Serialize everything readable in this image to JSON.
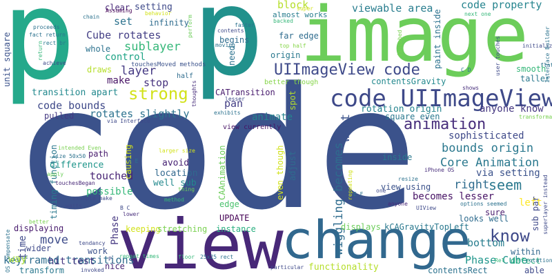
{
  "cloud": {
    "words": [
      {
        "text": "code",
        "color": "#3b528b"
      },
      {
        "text": "p",
        "color": "#25a98b"
      },
      {
        "text": "p",
        "color": "#21918c"
      },
      {
        "text": "image",
        "color": "#6ccd5a"
      },
      {
        "text": "view",
        "color": "#482878"
      },
      {
        "text": "change",
        "color": "#31688e"
      },
      {
        "text": "code UIImageView",
        "color": "#3e4989"
      },
      {
        "text": "UIImageView code",
        "color": "#3e4989"
      },
      {
        "text": "animation",
        "color": "#472d7b"
      },
      {
        "text": "strong",
        "color": "#d2e21b"
      },
      {
        "text": "know",
        "color": "#3e4989"
      },
      {
        "text": "seem",
        "color": "#2a788e"
      },
      {
        "text": "keyframed transitions",
        "color": "#2f6c8e"
      },
      {
        "text": "wiggling becomes",
        "color": "#2f6c8e"
      },
      {
        "text": "Core Animation",
        "color": "#2a788e"
      },
      {
        "text": "bounds origin",
        "color": "#2a788e"
      },
      {
        "text": "viewable area",
        "color": "#287d8e"
      },
      {
        "text": "code property",
        "color": "#25848e"
      },
      {
        "text": "sublayer",
        "color": "#35b779"
      },
      {
        "text": "layer",
        "color": "#443983"
      },
      {
        "text": "Cube rotates",
        "color": "#433e85"
      },
      {
        "text": "code bounds",
        "color": "#3e4989"
      },
      {
        "text": "rotates slightly",
        "color": "#2c728e"
      },
      {
        "text": "touched",
        "color": "#482475"
      },
      {
        "text": "move",
        "color": "#3e4c8a"
      },
      {
        "text": "right",
        "color": "#2f6c8e"
      },
      {
        "text": "pan",
        "color": "#433e85"
      },
      {
        "text": "want",
        "color": "#3b528b"
      },
      {
        "text": "set",
        "color": "#2c728e"
      },
      {
        "text": "stop",
        "color": "#46327e"
      },
      {
        "text": "block",
        "color": "#b5de2b"
      },
      {
        "text": "Phase Cube",
        "color": "#1f968b"
      },
      {
        "text": "bottom",
        "color": "#287d8e"
      },
      {
        "text": "way",
        "color": "#a5db36"
      },
      {
        "text": "hit test",
        "color": "#453781"
      },
      {
        "text": "make",
        "color": "#471365"
      },
      {
        "text": "animate",
        "color": "#25848e"
      },
      {
        "text": "sophisticated",
        "color": "#3e4989"
      },
      {
        "text": "control",
        "color": "#20a486"
      },
      {
        "text": "anyone know",
        "color": "#453781"
      },
      {
        "text": "via setting",
        "color": "#3b528b"
      },
      {
        "text": "becomes lesser",
        "color": "#471365"
      },
      {
        "text": "left",
        "color": "#fde725"
      },
      {
        "text": "difference",
        "color": "#1f958b"
      },
      {
        "text": "possible",
        "color": "#35b779"
      },
      {
        "text": "Phase",
        "color": "#453781"
      },
      {
        "text": "time",
        "color": "#3e4989"
      },
      {
        "text": "transition apart",
        "color": "#23898e"
      },
      {
        "text": "location",
        "color": "#31688e"
      },
      {
        "text": "well sub",
        "color": "#23898e"
      },
      {
        "text": "avoid",
        "color": "#482475"
      },
      {
        "text": "path",
        "color": "#481b6d"
      },
      {
        "text": "displaying",
        "color": "#481b6d"
      },
      {
        "text": "keeping",
        "color": "#d2e21b"
      },
      {
        "text": "stretching",
        "color": "#7ad151"
      },
      {
        "text": "instance",
        "color": "#29af7f"
      },
      {
        "text": "functionality",
        "color": "#b5de2b"
      },
      {
        "text": "displays",
        "color": "#6ccd5a"
      },
      {
        "text": "kCAGravityTopLeft",
        "color": "#2a788e"
      },
      {
        "text": "looks well",
        "color": "#2f6c8e"
      },
      {
        "text": "sure",
        "color": "#481b6d"
      },
      {
        "text": "within",
        "color": "#31688e"
      },
      {
        "text": "detect",
        "color": "#29af7f"
      },
      {
        "text": "able",
        "color": "#3e4989"
      },
      {
        "text": "contentsRect",
        "color": "#2c728e"
      },
      {
        "text": "pulled",
        "color": "#443983"
      },
      {
        "text": "draws",
        "color": "#b5de2b"
      },
      {
        "text": "whole",
        "color": "#2c728e"
      },
      {
        "text": "setting",
        "color": "#3e4989"
      },
      {
        "text": "infinity",
        "color": "#2f6c8e"
      },
      {
        "text": "clear",
        "color": "#482878"
      },
      {
        "text": "almost works",
        "color": "#287d8e"
      },
      {
        "text": "far edge",
        "color": "#2f6c8e"
      },
      {
        "text": "begins",
        "color": "#2f6c8e"
      },
      {
        "text": "origin",
        "color": "#2a788e"
      },
      {
        "text": "need",
        "color": "#2c728e"
      },
      {
        "text": "CATransition",
        "color": "#481b6d"
      },
      {
        "text": "spot",
        "color": "#b5de2b"
      },
      {
        "text": "rotation origin",
        "color": "#25848e"
      },
      {
        "text": "square even",
        "color": "#2a788e"
      },
      {
        "text": "contentsGravity",
        "color": "#23898e"
      },
      {
        "text": "smooth",
        "color": "#35b779"
      },
      {
        "text": "taller",
        "color": "#2a788e"
      },
      {
        "text": "inside",
        "color": "#2a788e"
      },
      {
        "text": "adjust",
        "color": "#2f6c8e"
      },
      {
        "text": "even though",
        "color": "#d2e21b"
      },
      {
        "text": "view using",
        "color": "#3b528b"
      },
      {
        "text": "CAAnimation",
        "color": "#6ccd5a"
      },
      {
        "text": "edge",
        "color": "#4ac16d"
      },
      {
        "text": "UPDATE",
        "color": "#440154"
      },
      {
        "text": "work",
        "color": "#3b528b"
      },
      {
        "text": "nice",
        "color": "#482475"
      },
      {
        "text": "transform",
        "color": "#2a788e"
      },
      {
        "text": "timing function",
        "color": "#2a788e"
      },
      {
        "text": "unit square",
        "color": "#3b528b"
      },
      {
        "text": "wider",
        "color": "#3e4989"
      },
      {
        "text": "causing",
        "color": "#d2e21b"
      },
      {
        "text": "paint inside",
        "color": "#2c728e"
      },
      {
        "text": "sub par",
        "color": "#3e4989"
      },
      {
        "text": "view currently",
        "color": "#471365"
      },
      {
        "text": "half",
        "color": "#2f6c8e"
      },
      {
        "text": "better though",
        "color": "#86d549"
      },
      {
        "text": "touchesMoved methods",
        "color": "#3b528b"
      },
      {
        "text": "Assuming",
        "color": "#440154"
      },
      {
        "text": "behavior",
        "color": "#d2e21b"
      },
      {
        "text": "chain",
        "color": "#2c728e"
      },
      {
        "text": "perform",
        "color": "#6ccd5a"
      },
      {
        "text": "proceeds",
        "color": "#2c728e"
      },
      {
        "text": "fact return",
        "color": "#2c728e"
      },
      {
        "text": "rect br",
        "color": "#2a788e"
      },
      {
        "text": "return",
        "color": "#35b779"
      },
      {
        "text": "achieve",
        "color": "#3e4989"
      },
      {
        "text": "contents",
        "color": "#3e4989"
      },
      {
        "text": "faster",
        "color": "#2c728e"
      },
      {
        "text": "backed",
        "color": "#35b779"
      },
      {
        "text": "top half",
        "color": "#86d549"
      },
      {
        "text": "super",
        "color": "#d2e21b"
      },
      {
        "text": "finished",
        "color": "#7ad151"
      },
      {
        "text": "next one",
        "color": "#35b779"
      },
      {
        "text": "user touches",
        "color": "#3e4989"
      },
      {
        "text": "initialized",
        "color": "#3e4989"
      },
      {
        "text": "Interface Builder",
        "color": "#2c728e"
      },
      {
        "text": "flat",
        "color": "#2c728e"
      },
      {
        "text": "shows",
        "color": "#472d7b"
      },
      {
        "text": "thoughts",
        "color": "#472d7b"
      },
      {
        "text": "lesser",
        "color": "#3e4989"
      },
      {
        "text": "exhibits",
        "color": "#2c728e"
      },
      {
        "text": "via Interface",
        "color": "#3e4989"
      },
      {
        "text": "intended Even",
        "color": "#7ad151"
      },
      {
        "text": "size 50x50",
        "color": "#2c728e"
      },
      {
        "text": "apply",
        "color": "#6ccd5a"
      },
      {
        "text": "touchesBegan",
        "color": "#482878"
      },
      {
        "text": "waits",
        "color": "#3e4989"
      },
      {
        "text": "example make",
        "color": "#3e4989"
      },
      {
        "text": "tendancy",
        "color": "#3e4989"
      },
      {
        "text": "repeat times",
        "color": "#35b779"
      },
      {
        "text": "invoked",
        "color": "#3e4989"
      },
      {
        "text": "lower",
        "color": "#472d7b"
      },
      {
        "text": "floor",
        "color": "#35b779"
      },
      {
        "text": "25x25 rect",
        "color": "#2c728e"
      },
      {
        "text": "larger size",
        "color": "#d2e21b"
      },
      {
        "text": "thing",
        "color": "#6ccd5a"
      },
      {
        "text": "method",
        "color": "#35b779"
      },
      {
        "text": "resize",
        "color": "#2c728e"
      },
      {
        "text": "iPhone OS",
        "color": "#472d7b"
      },
      {
        "text": "one",
        "color": "#3e4989"
      },
      {
        "text": "anyone",
        "color": "#482878"
      },
      {
        "text": "options seemed",
        "color": "#2c728e"
      },
      {
        "text": "Rel",
        "color": "#35b779"
      },
      {
        "text": "rotation",
        "color": "#2c728e"
      },
      {
        "text": "superlayer instead",
        "color": "#3e4989"
      },
      {
        "text": "particular",
        "color": "#3e4989"
      },
      {
        "text": "better",
        "color": "#7ad151"
      },
      {
        "text": "OS compensate",
        "color": "#2c728e"
      },
      {
        "text": "B C",
        "color": "#3e4989"
      },
      {
        "text": "C D",
        "color": "#2c728e"
      },
      {
        "text": "E F",
        "color": "#2c728e"
      },
      {
        "text": "D E",
        "color": "#2c728e"
      },
      {
        "text": "P",
        "color": "#3e4989"
      },
      {
        "text": "UIView",
        "color": "#3e4989"
      },
      {
        "text": "transformation",
        "color": "#7ad151"
      },
      {
        "text": "repeating",
        "color": "#d2e21b"
      },
      {
        "text": "moving",
        "color": "#2c728e"
      }
    ]
  }
}
